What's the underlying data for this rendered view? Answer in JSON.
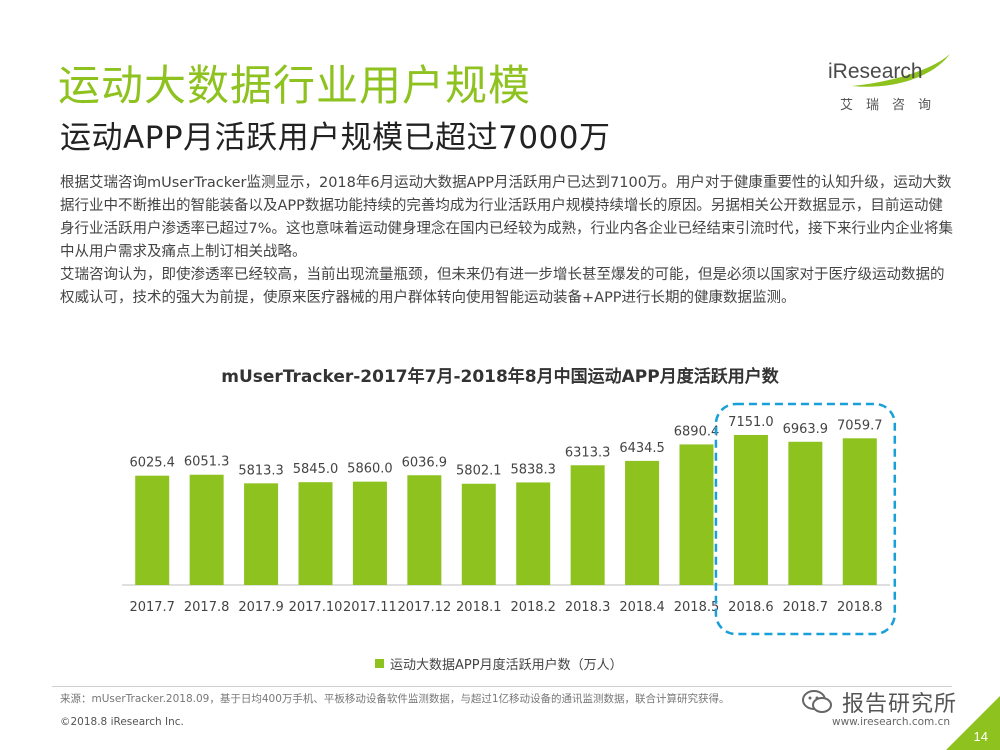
{
  "header": {
    "title": "运动大数据行业用户规模",
    "subtitle": "运动APP月活跃用户规模已超过7000万"
  },
  "logo": {
    "text": "iResearch",
    "sub": "艾瑞咨询"
  },
  "body": {
    "paragraphs": [
      "根据艾瑞咨询mUserTracker监测显示，2018年6月运动大数据APP月活跃用户已达到7100万。用户对于健康重要性的认知升级，运动大数据行业中不断推出的智能装备以及APP数据功能持续的完善均成为行业活跃用户规模持续增长的原因。另据相关公开数据显示，目前运动健身行业活跃用户渗透率已超过7%。这也意味着运动健身理念在国内已经较为成熟，行业内各企业已经结束引流时代，接下来行业内企业将集中从用户需求及痛点上制订相关战略。",
      "艾瑞咨询认为，即使渗透率已经较高，当前出现流量瓶颈，但未来仍有进一步增长甚至爆发的可能，但是必须以国家对于医疗级运动数据的权威认可，技术的强大为前提，使原来医疗器械的用户群体转向使用智能运动装备+APP进行长期的健康数据监测。"
    ]
  },
  "chart_data": {
    "type": "bar",
    "title": "mUserTracker-2017年7月-2018年8月中国运动APP月度活跃用户数",
    "categories": [
      "2017.7",
      "2017.8",
      "2017.9",
      "2017.10",
      "2017.11",
      "2017.12",
      "2018.1",
      "2018.2",
      "2018.3",
      "2018.4",
      "2018.5",
      "2018.6",
      "2018.7",
      "2018.8"
    ],
    "series": [
      {
        "name": "运动大数据APP月度活跃用户数（万人）",
        "values": [
          6025.4,
          6051.3,
          5813.3,
          5845.0,
          5860.0,
          6036.9,
          5802.1,
          5838.3,
          6313.3,
          6434.5,
          6890.4,
          7151.0,
          6963.9,
          7059.7
        ],
        "labels": [
          "6025.4",
          "6051.3",
          "5813.3",
          "5845.0",
          "5860.0",
          "6036.9",
          "5802.1",
          "5838.3",
          "6313.3",
          "6434.5",
          "6890.4",
          "7151.0",
          "6963.9",
          "7059.7"
        ]
      }
    ],
    "highlight": [
      "2018.6",
      "2018.7",
      "2018.8"
    ],
    "bar_color": "#8dc21f",
    "highlight_color": "#1aa0d8",
    "legend_position": "bottom",
    "grid": false
  },
  "footer": {
    "source": "来源：mUserTracker.2018.09，基于日均400万手机、平板移动设备软件监测数据，与超过1亿移动设备的通讯监测数据，联合计算研究获得。",
    "copyright": "©2018.8 iResearch Inc.",
    "website": "www.iresearch.com.cn",
    "watermark": "报告研究所",
    "page": "14"
  },
  "colors": {
    "accent": "#8dc21f",
    "highlight": "#1aa0d8",
    "corner": "#8dc21f"
  }
}
